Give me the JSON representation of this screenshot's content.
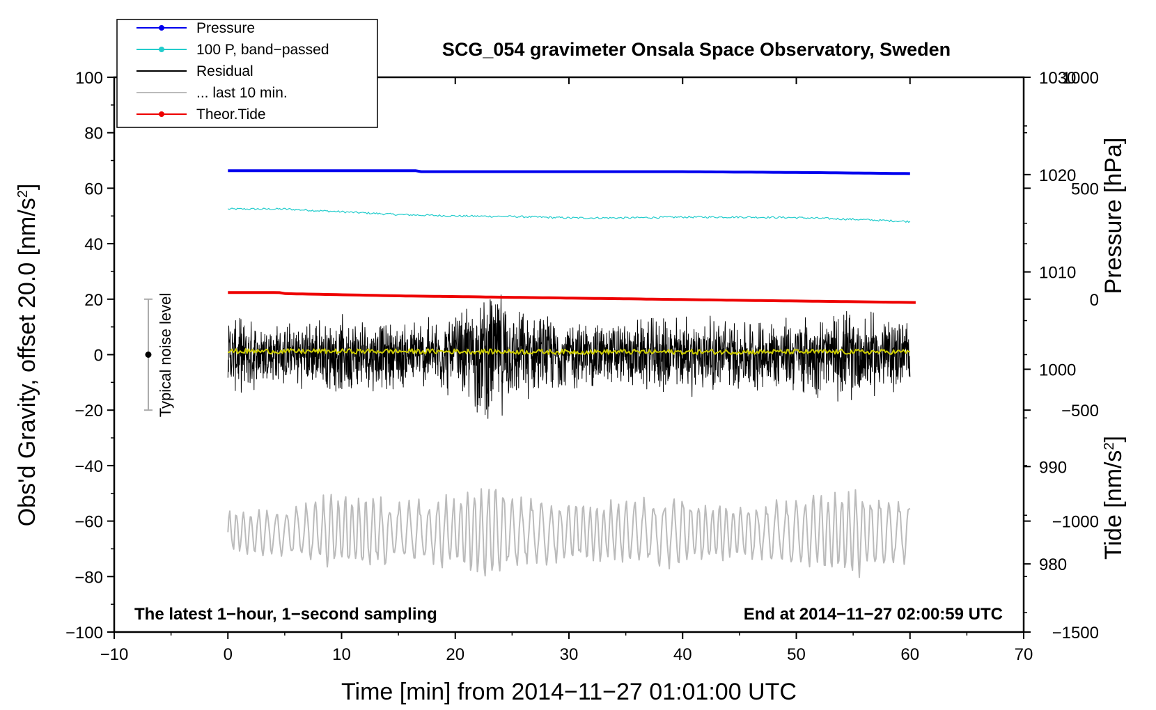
{
  "chart_data": {
    "type": "line",
    "title": "SCG_054 gravimeter Onsala Space Observatory, Sweden",
    "xlabel": "Time [min] from 2014−11−27 01:01:00 UTC",
    "ylabel": "Obs'd Gravity, offset 20.0 [nm/s²]",
    "ylabel_text": "Obs'd Gravity, offset 20.0 [nm/s",
    "ylabel_sup": "2",
    "ylabel_close": "]",
    "y2label_pressure": "Pressure [hPa]",
    "y2label_tide": "Tide [nm/s²]",
    "y2label_tide_text": "Tide [nm/s",
    "y2label_tide_sup": "2",
    "y2label_tide_close": "]",
    "xlim": [
      -10,
      70
    ],
    "ylim": [
      -100,
      100
    ],
    "pressure_ylim": [
      973,
      1030
    ],
    "tide_ylim": [
      -1500,
      1000
    ],
    "x_ticks": [
      "−10",
      "0",
      "10",
      "20",
      "30",
      "40",
      "50",
      "60",
      "70"
    ],
    "x_tick_values": [
      -10,
      0,
      10,
      20,
      30,
      40,
      50,
      60,
      70
    ],
    "y_ticks": [
      "−100",
      "−80",
      "−60",
      "−40",
      "−20",
      "0",
      "20",
      "40",
      "60",
      "80",
      "100"
    ],
    "y_tick_values": [
      -100,
      -80,
      -60,
      -40,
      -20,
      0,
      20,
      40,
      60,
      80,
      100
    ],
    "pressure_ticks": [
      "980",
      "990",
      "1000",
      "1010",
      "1020",
      "1030"
    ],
    "pressure_tick_values": [
      980,
      990,
      1000,
      1010,
      1020,
      1030
    ],
    "tide_ticks": [
      "−1500",
      "−1000",
      "−500",
      "0",
      "500",
      "1000"
    ],
    "tide_tick_values": [
      -1500,
      -1000,
      -500,
      0,
      500,
      1000
    ],
    "legend": {
      "placement": "top-left",
      "entries": [
        {
          "label": "Pressure",
          "color": "#0000ee",
          "marker": true
        },
        {
          "label": "100 P, band−passed",
          "color": "#22cccc",
          "marker": true
        },
        {
          "label": "Residual",
          "color": "#000000",
          "marker": false
        },
        {
          "label": "... last 10 min.",
          "color": "#bbbbbb",
          "marker": false
        },
        {
          "label": "Theor.Tide",
          "color": "#ee0000",
          "marker": true
        }
      ]
    },
    "annotations": {
      "noise_label": "Typical noise level",
      "noise_x": -7,
      "noise_range": [
        -20,
        20
      ],
      "bottom_left": "The latest 1−hour, 1−second sampling",
      "bottom_right": "End at 2014−11−27 02:00:59 UTC"
    },
    "series": [
      {
        "name": "Pressure",
        "axis": "pressure",
        "color": "#0000ee",
        "x": [
          0,
          16.5,
          17,
          40,
          52,
          60
        ],
        "values": [
          1020.4,
          1020.4,
          1020.3,
          1020.3,
          1020.2,
          1020.1
        ]
      },
      {
        "name": "100 P, band−passed",
        "axis": "gravity",
        "color": "#22cccc",
        "x": [
          0,
          5,
          10,
          15,
          20,
          25,
          30,
          35,
          40,
          45,
          50,
          55,
          60
        ],
        "values": [
          52.5,
          52.5,
          51.5,
          50.5,
          50.0,
          49.8,
          49.3,
          49.3,
          49.6,
          49.6,
          49.4,
          48.8,
          48.0
        ]
      },
      {
        "name": "Residual",
        "axis": "gravity",
        "color": "#000000",
        "x": [
          0,
          5,
          10,
          15,
          20,
          23.5,
          25,
          30,
          35,
          40,
          45,
          50,
          55,
          60
        ],
        "values": [
          0,
          0,
          0,
          0,
          0,
          0,
          0,
          0,
          0,
          0,
          0,
          0,
          0,
          0
        ],
        "envelope": [
          15,
          12,
          15,
          13,
          16,
          28,
          18,
          14,
          13,
          16,
          14,
          15,
          18,
          14
        ]
      },
      {
        "name": "Residual mean",
        "axis": "gravity",
        "color": "#cccc00",
        "x": [
          0,
          15,
          30,
          45,
          60
        ],
        "values": [
          1.2,
          1.2,
          1.0,
          1.0,
          1.0
        ]
      },
      {
        "name": "... last 10 min.",
        "axis": "gravity",
        "color": "#bbbbbb",
        "x": [
          0,
          5,
          10,
          15,
          20,
          23.5,
          25,
          30,
          35,
          40,
          45,
          50,
          55,
          60
        ],
        "values": [
          -64,
          -64,
          -64,
          -64,
          -64,
          -64,
          -64,
          -64,
          -64,
          -64,
          -64,
          -64,
          -64,
          -64
        ],
        "envelope": [
          8,
          9,
          16,
          12,
          14,
          22,
          14,
          11,
          12,
          14,
          10,
          13,
          17,
          12
        ]
      },
      {
        "name": "Theor.Tide",
        "axis": "tide",
        "color": "#ee0000",
        "x": [
          0,
          4.5,
          5,
          15,
          30,
          45,
          60.5
        ],
        "values": [
          30,
          30,
          25,
          15,
          5,
          -5,
          -15
        ]
      }
    ]
  }
}
